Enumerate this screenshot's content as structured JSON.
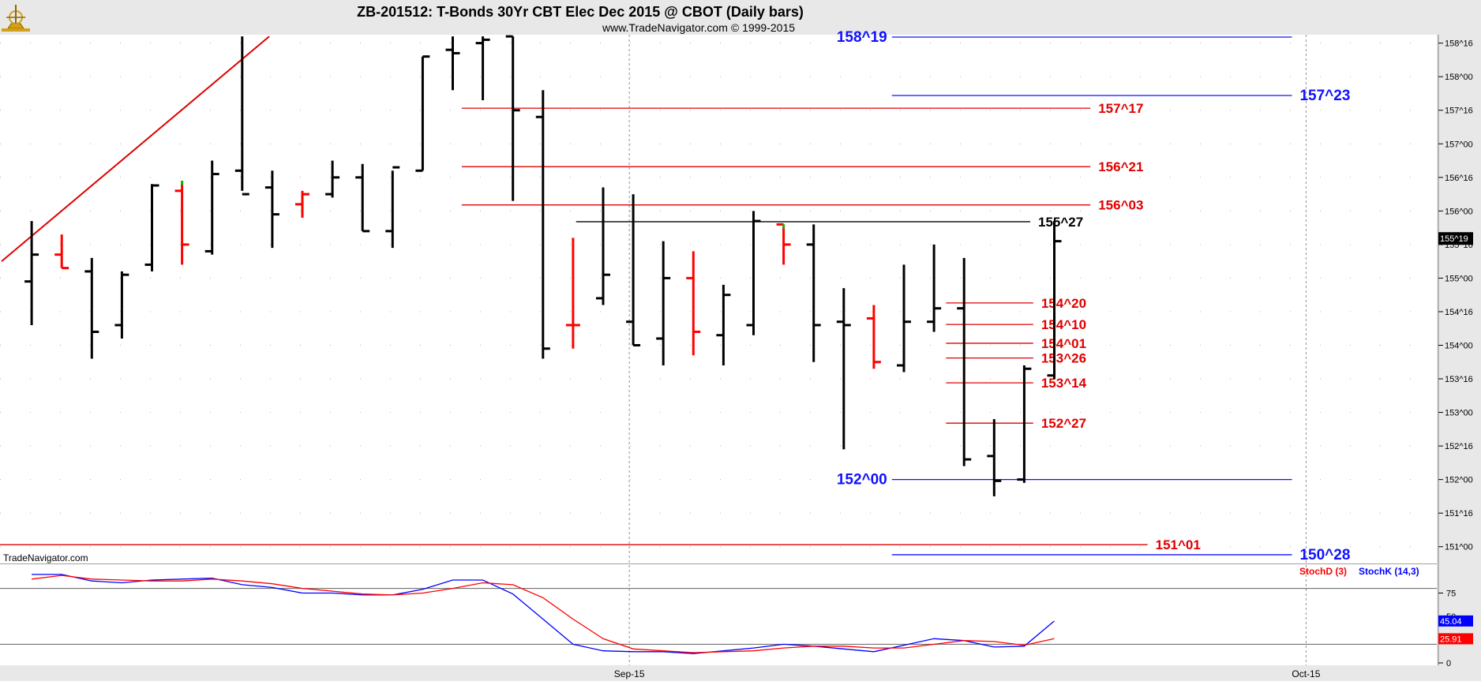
{
  "header": {
    "title": "ZB-201512:  T-Bonds 30Yr CBT Elec Dec 2015 @ CBOT  (Daily bars)",
    "subtitle": "www.TradeNavigator.com © 1999-2015"
  },
  "watermark": "TradeNavigator.com",
  "colors": {
    "up_bar": "#000000",
    "down_bar": "#ff0000",
    "blue_level": "#1010ff",
    "red_level": "#e00000",
    "trendline": "#e00000",
    "stoch_k": "#0000ff",
    "stoch_d": "#ff0000",
    "frame_bg": "#e8e8e8"
  },
  "chart_data": [
    {
      "type": "ohlc",
      "price_axis": {
        "range": [
          150.75,
          158.625
        ],
        "ticks": [
          {
            "label": "158^16",
            "value": 158.5
          },
          {
            "label": "158^00",
            "value": 158.0
          },
          {
            "label": "157^16",
            "value": 157.5
          },
          {
            "label": "157^00",
            "value": 157.0
          },
          {
            "label": "156^16",
            "value": 156.5
          },
          {
            "label": "156^00",
            "value": 156.0
          },
          {
            "label": "155^16",
            "value": 155.5
          },
          {
            "label": "155^00",
            "value": 155.0
          },
          {
            "label": "154^16",
            "value": 154.5
          },
          {
            "label": "154^00",
            "value": 154.0
          },
          {
            "label": "153^16",
            "value": 153.5
          },
          {
            "label": "153^00",
            "value": 153.0
          },
          {
            "label": "152^16",
            "value": 152.5
          },
          {
            "label": "152^00",
            "value": 152.0
          },
          {
            "label": "151^16",
            "value": 151.5
          },
          {
            "label": "151^00",
            "value": 151.0
          }
        ],
        "last_price_label": "155^19",
        "last_price": 155.59
      },
      "x_axis": {
        "range": [
          0,
          50
        ],
        "ticks": [
          {
            "label": "Sep-15",
            "value": 21.5
          },
          {
            "label": "Oct-15",
            "value": 44
          }
        ]
      },
      "bars": [
        {
          "x": 1,
          "o": 154.95,
          "h": 155.85,
          "l": 154.3,
          "c": 155.35,
          "dir": "up"
        },
        {
          "x": 2,
          "o": 155.35,
          "h": 155.65,
          "l": 155.15,
          "c": 155.15,
          "dir": "down"
        },
        {
          "x": 3,
          "o": 155.1,
          "h": 155.3,
          "l": 153.8,
          "c": 154.2,
          "dir": "up"
        },
        {
          "x": 4,
          "o": 154.3,
          "h": 155.1,
          "l": 154.1,
          "c": 155.05,
          "dir": "up"
        },
        {
          "x": 5,
          "o": 155.2,
          "h": 156.4,
          "l": 155.1,
          "c": 156.38,
          "dir": "up"
        },
        {
          "x": 6,
          "o": 156.3,
          "h": 156.45,
          "l": 155.2,
          "c": 155.5,
          "dir": "down",
          "high_tick": "#00c000"
        },
        {
          "x": 7,
          "o": 155.4,
          "h": 156.75,
          "l": 155.35,
          "c": 156.55,
          "dir": "up"
        },
        {
          "x": 8,
          "o": 156.6,
          "h": 158.6,
          "l": 156.3,
          "c": 156.25,
          "dir": "up"
        },
        {
          "x": 9,
          "o": 156.35,
          "h": 156.6,
          "l": 155.45,
          "c": 155.95,
          "dir": "up"
        },
        {
          "x": 10,
          "o": 156.1,
          "h": 156.3,
          "l": 155.9,
          "c": 156.25,
          "dir": "down"
        },
        {
          "x": 11,
          "o": 156.25,
          "h": 156.75,
          "l": 156.2,
          "c": 156.5,
          "dir": "up"
        },
        {
          "x": 12,
          "o": 156.5,
          "h": 156.7,
          "l": 155.7,
          "c": 155.7,
          "dir": "up"
        },
        {
          "x": 13,
          "o": 155.7,
          "h": 156.6,
          "l": 155.45,
          "c": 156.65,
          "dir": "up"
        },
        {
          "x": 14,
          "o": 156.6,
          "h": 158.3,
          "l": 156.6,
          "c": 158.3,
          "dir": "up"
        },
        {
          "x": 15,
          "o": 158.4,
          "h": 158.6,
          "l": 157.8,
          "c": 158.35,
          "dir": "up"
        },
        {
          "x": 16,
          "o": 158.5,
          "h": 158.6,
          "l": 157.65,
          "c": 158.55,
          "dir": "up"
        },
        {
          "x": 17,
          "o": 158.6,
          "h": 158.6,
          "l": 156.15,
          "c": 157.5,
          "dir": "up"
        },
        {
          "x": 18,
          "o": 157.4,
          "h": 157.8,
          "l": 153.8,
          "c": 153.95,
          "dir": "up"
        },
        {
          "x": 19,
          "o": 154.3,
          "h": 155.6,
          "l": 153.95,
          "c": 154.3,
          "dir": "down"
        },
        {
          "x": 20,
          "o": 154.7,
          "h": 156.35,
          "l": 154.6,
          "c": 155.05,
          "dir": "up"
        },
        {
          "x": 21,
          "o": 154.35,
          "h": 156.25,
          "l": 154.0,
          "c": 154.0,
          "dir": "up"
        },
        {
          "x": 22,
          "o": 154.1,
          "h": 155.55,
          "l": 153.7,
          "c": 155.0,
          "dir": "up"
        },
        {
          "x": 23,
          "o": 155.0,
          "h": 155.4,
          "l": 153.85,
          "c": 154.2,
          "dir": "down"
        },
        {
          "x": 24,
          "o": 154.15,
          "h": 154.9,
          "l": 153.7,
          "c": 154.75,
          "dir": "up"
        },
        {
          "x": 25,
          "o": 154.3,
          "h": 156.0,
          "l": 154.15,
          "c": 155.85,
          "dir": "up"
        },
        {
          "x": 26,
          "o": 155.8,
          "h": 155.8,
          "l": 155.2,
          "c": 155.5,
          "dir": "down",
          "high_tick": "#00c000"
        },
        {
          "x": 27,
          "o": 155.5,
          "h": 155.8,
          "l": 153.75,
          "c": 154.3,
          "dir": "up"
        },
        {
          "x": 28,
          "o": 154.35,
          "h": 154.85,
          "l": 152.45,
          "c": 154.3,
          "dir": "up"
        },
        {
          "x": 29,
          "o": 154.4,
          "h": 154.6,
          "l": 153.65,
          "c": 153.75,
          "dir": "down"
        },
        {
          "x": 30,
          "o": 153.7,
          "h": 155.2,
          "l": 153.6,
          "c": 154.35,
          "dir": "up"
        },
        {
          "x": 31,
          "o": 154.35,
          "h": 155.5,
          "l": 154.2,
          "c": 154.55,
          "dir": "up"
        },
        {
          "x": 32,
          "o": 154.55,
          "h": 155.3,
          "l": 152.2,
          "c": 152.3,
          "dir": "up"
        },
        {
          "x": 33,
          "o": 152.35,
          "h": 152.9,
          "l": 151.75,
          "c": 151.98,
          "dir": "up"
        },
        {
          "x": 34,
          "o": 152.0,
          "h": 153.7,
          "l": 151.95,
          "c": 153.65,
          "dir": "up"
        },
        {
          "x": 35,
          "o": 153.55,
          "h": 155.85,
          "l": 153.5,
          "c": 155.55,
          "dir": "up"
        }
      ],
      "levels": [
        {
          "label": "158^19",
          "value": 158.59,
          "color": "#1010ff",
          "x1": 29.6,
          "x2": 42.9,
          "label_side": "left"
        },
        {
          "label": "157^23",
          "value": 157.72,
          "color": "#1010ff",
          "x1": 29.6,
          "x2": 42.9,
          "label_side": "right"
        },
        {
          "label": "157^17",
          "value": 157.53,
          "color": "#e00000",
          "x1": 15.3,
          "x2": 36.2,
          "label_side": "right"
        },
        {
          "label": "156^21",
          "value": 156.66,
          "color": "#e00000",
          "x1": 15.3,
          "x2": 36.2,
          "label_side": "right"
        },
        {
          "label": "156^03",
          "value": 156.09,
          "color": "#e00000",
          "x1": 15.3,
          "x2": 36.2,
          "label_side": "right"
        },
        {
          "label": "155^27",
          "value": 155.84,
          "color": "#000000",
          "x1": 19.1,
          "x2": 34.2,
          "label_side": "right"
        },
        {
          "label": "154^20",
          "value": 154.63,
          "color": "#e00000",
          "x1": 31.4,
          "x2": 34.3,
          "label_side": "right"
        },
        {
          "label": "154^10",
          "value": 154.31,
          "color": "#e00000",
          "x1": 31.4,
          "x2": 34.3,
          "label_side": "right"
        },
        {
          "label": "154^01",
          "value": 154.03,
          "color": "#e00000",
          "x1": 31.4,
          "x2": 34.3,
          "label_side": "right"
        },
        {
          "label": "153^26",
          "value": 153.81,
          "color": "#e00000",
          "x1": 31.4,
          "x2": 34.3,
          "label_side": "right"
        },
        {
          "label": "153^14",
          "value": 153.44,
          "color": "#e00000",
          "x1": 31.4,
          "x2": 34.3,
          "label_side": "right"
        },
        {
          "label": "152^27",
          "value": 152.84,
          "color": "#e00000",
          "x1": 31.4,
          "x2": 34.3,
          "label_side": "right"
        },
        {
          "label": "152^00",
          "value": 152.0,
          "color": "#1010ff",
          "x1": 29.6,
          "x2": 42.9,
          "label_side": "left"
        },
        {
          "label": "151^01",
          "value": 151.03,
          "color": "#e00000",
          "x1": 0,
          "x2": 38.1,
          "label_side": "right"
        },
        {
          "label": "150^28",
          "value": 150.88,
          "color": "#1010ff",
          "x1": 29.6,
          "x2": 42.9,
          "label_side": "right"
        }
      ],
      "trendline": {
        "x1": 0,
        "y1": 155.25,
        "x2": 8.9,
        "y2": 158.6
      }
    },
    {
      "type": "line",
      "title": "",
      "y_axis": {
        "range": [
          0,
          100
        ],
        "ticks": [
          {
            "label": "75",
            "value": 75
          },
          {
            "label": "50",
            "value": 50
          },
          {
            "label": "25",
            "value": 25
          },
          {
            "label": "0",
            "value": 0
          }
        ]
      },
      "reference_lines": [
        80,
        20
      ],
      "legend": [
        {
          "label": "StochD (3)",
          "color": "#ff0000"
        },
        {
          "label": "StochK (14,3)",
          "color": "#0000ff"
        }
      ],
      "last_values": [
        {
          "label": "45.04",
          "value": 45.04,
          "color": "#0000ff"
        },
        {
          "label": "25.91",
          "value": 25.91,
          "color": "#ff0000"
        }
      ],
      "series": [
        {
          "name": "StochK (14,3)",
          "color": "#0000ff",
          "x": [
            1,
            2,
            3,
            4,
            5,
            6,
            7,
            8,
            9,
            10,
            11,
            12,
            13,
            14,
            15,
            16,
            17,
            18,
            19,
            20,
            21,
            22,
            23,
            24,
            25,
            26,
            27,
            28,
            29,
            30,
            31,
            32,
            33,
            34,
            35
          ],
          "values": [
            95,
            95,
            88,
            86,
            89,
            90,
            91,
            84,
            81,
            75,
            75,
            73,
            73,
            79,
            89,
            89,
            74,
            47,
            20,
            13,
            12,
            12,
            10,
            13,
            16,
            20,
            18,
            15,
            12,
            19,
            26,
            24,
            17,
            18,
            45
          ]
        },
        {
          "name": "StochD (3)",
          "color": "#ff0000",
          "x": [
            1,
            2,
            3,
            4,
            5,
            6,
            7,
            8,
            9,
            10,
            11,
            12,
            13,
            14,
            15,
            16,
            17,
            18,
            19,
            20,
            21,
            22,
            23,
            24,
            25,
            26,
            27,
            28,
            29,
            30,
            31,
            32,
            33,
            34,
            35
          ],
          "values": [
            90,
            94,
            90,
            89,
            88,
            88,
            90,
            88,
            85,
            80,
            77,
            74,
            73,
            75,
            80,
            86,
            84,
            70,
            47,
            26,
            15,
            13,
            11,
            12,
            13,
            16,
            18,
            18,
            16,
            16,
            20,
            24,
            23,
            19,
            26
          ]
        }
      ]
    }
  ]
}
